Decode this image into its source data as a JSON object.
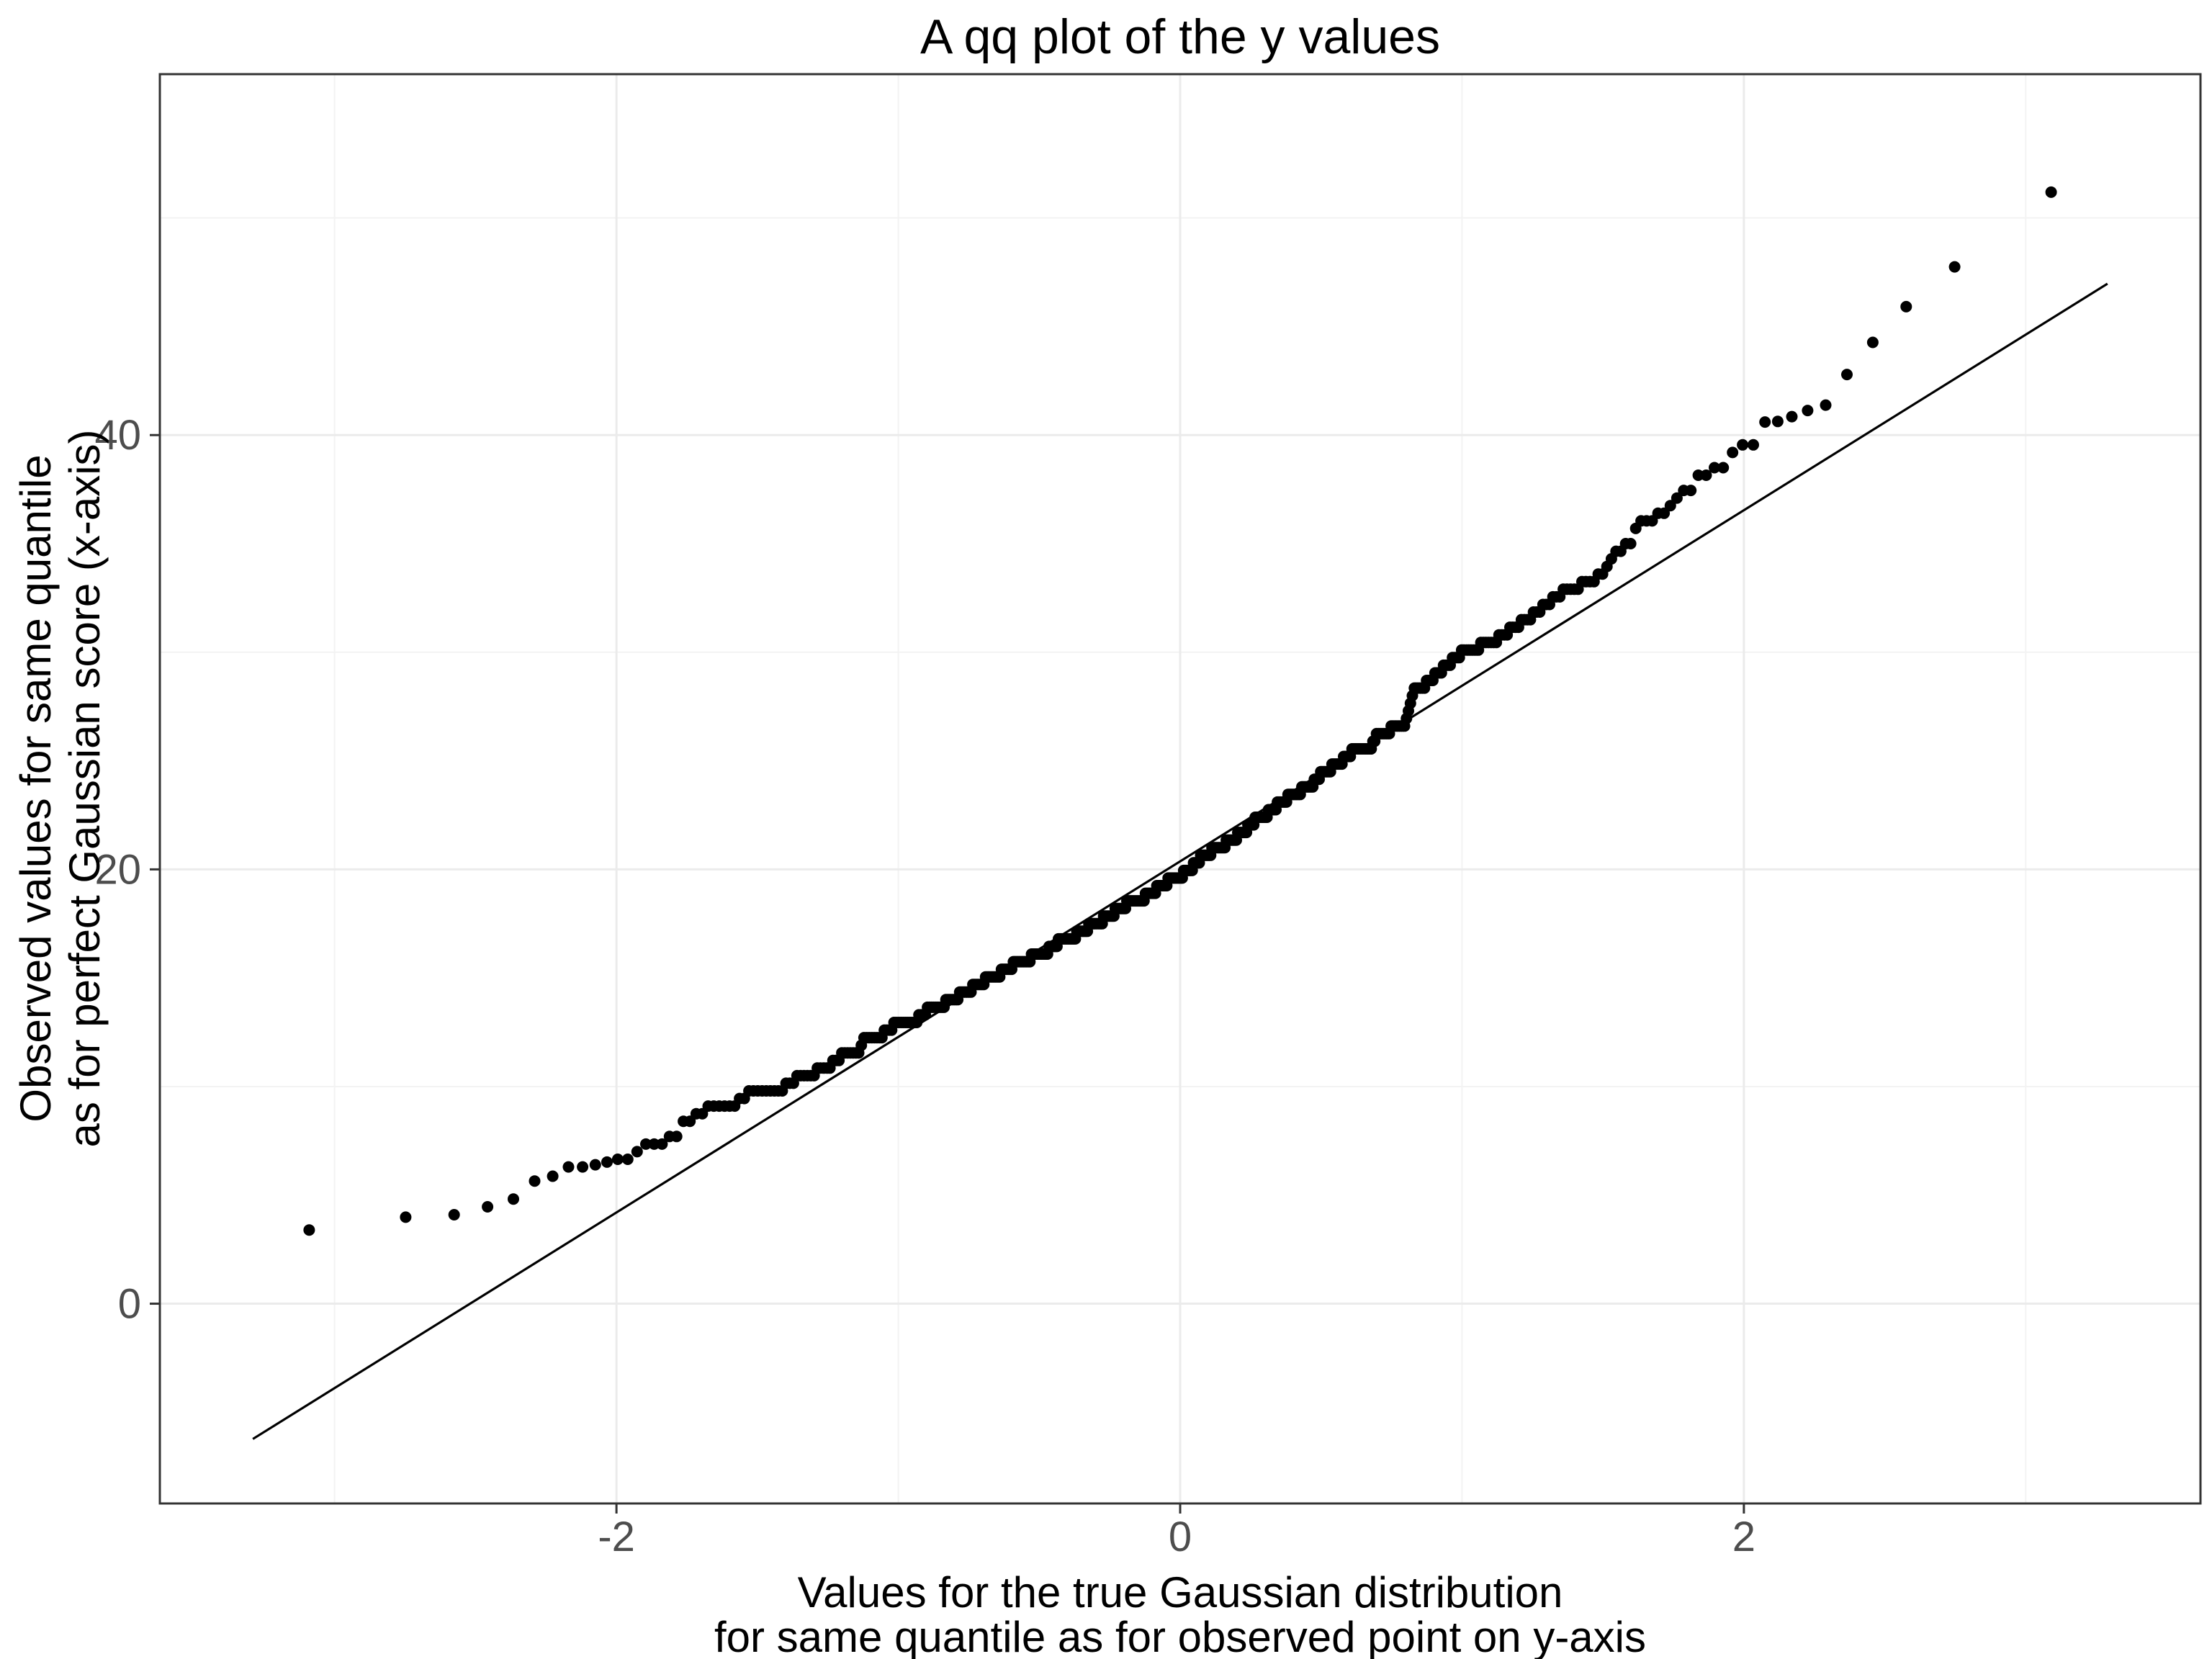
{
  "chart_data": {
    "type": "scatter",
    "subtype": "qq-plot",
    "title": "A qq plot of the y values",
    "xlabel_lines": [
      "Values for the true Gaussian distribution",
      "for same quantile as for observed point on y-axis"
    ],
    "ylabel_lines": [
      "Observed values for same quantile",
      "as for perfect Gaussian score (x-axis)"
    ],
    "x_ticks": [
      {
        "value": -2,
        "label": "-2"
      },
      {
        "value": 0,
        "label": "0"
      },
      {
        "value": 2,
        "label": "2"
      }
    ],
    "y_ticks": [
      {
        "value": 0,
        "label": "0"
      },
      {
        "value": 20,
        "label": "20"
      },
      {
        "value": 40,
        "label": "40"
      }
    ],
    "x_minor_gridlines": [
      -3,
      -1,
      1,
      3
    ],
    "y_minor_gridlines": [
      10,
      30,
      50
    ],
    "xlim": [
      -3.62,
      3.62
    ],
    "ylim": [
      -9.2,
      56.62
    ],
    "grid": true,
    "legend": "none",
    "n_points": 500,
    "point_color": "#000000",
    "line_color": "#000000",
    "grid_major_color": "#ebebeb",
    "grid_minor_color": "#f3f3f3",
    "panel_border_color": "#333333",
    "tick_label_color": "#4d4d4d",
    "background_color": "#ffffff",
    "qq_line": {
      "x_start": -3.29,
      "y_start": -6.23,
      "x_end": 3.29,
      "y_end": 46.97,
      "slope": 8.085,
      "intercept": 20.37
    },
    "jitter_sd": 0.18,
    "quantize_step": 0.35,
    "smooth_tail_cutoff": 2.1,
    "curve_anchors": [
      [
        -3.29,
        2.75
      ],
      [
        -2.97,
        3.78
      ],
      [
        -2.81,
        3.95
      ],
      [
        -2.7,
        4.01
      ],
      [
        -2.62,
        4.08
      ],
      [
        -2.54,
        4.11
      ],
      [
        -2.49,
        4.44
      ],
      [
        -2.43,
        4.48
      ],
      [
        -2.39,
        4.58
      ],
      [
        -2.34,
        5.07
      ],
      [
        -2.31,
        5.61
      ],
      [
        -2.28,
        5.67
      ],
      [
        -2.25,
        5.77
      ],
      [
        -2.21,
        5.94
      ],
      [
        -2.19,
        6.33
      ],
      [
        -2.16,
        6.43
      ],
      [
        -2.13,
        6.5
      ],
      [
        -2.0,
        6.75
      ],
      [
        -1.9,
        7.3
      ],
      [
        -1.76,
        8.2
      ],
      [
        -1.6,
        9.3
      ],
      [
        -1.5,
        9.7
      ],
      [
        -1.4,
        10.0
      ],
      [
        -1.28,
        10.8
      ],
      [
        -1.22,
        11.3
      ],
      [
        -1.1,
        12.1
      ],
      [
        -1.0,
        12.8
      ],
      [
        -0.82,
        13.9
      ],
      [
        -0.65,
        15.2
      ],
      [
        -0.45,
        16.4
      ],
      [
        -0.2,
        18.2
      ],
      [
        0.0,
        19.8
      ],
      [
        0.2,
        21.5
      ],
      [
        0.38,
        23.3
      ],
      [
        0.55,
        24.8
      ],
      [
        0.73,
        26.3
      ],
      [
        0.79,
        26.45
      ],
      [
        0.81,
        27.8
      ],
      [
        1.0,
        29.9
      ],
      [
        1.21,
        31.4
      ],
      [
        1.32,
        32.3
      ],
      [
        1.46,
        33.5
      ],
      [
        1.57,
        34.7
      ],
      [
        1.6,
        35.3
      ],
      [
        1.7,
        36.4
      ],
      [
        1.83,
        37.9
      ],
      [
        1.94,
        39.0
      ],
      [
        2.0,
        39.6
      ],
      [
        2.06,
        40.0
      ],
      [
        2.09,
        40.5
      ],
      [
        2.16,
        40.8
      ],
      [
        2.24,
        41.2
      ],
      [
        2.31,
        41.45
      ],
      [
        2.35,
        42.4
      ],
      [
        2.39,
        43.4
      ],
      [
        2.43,
        44.2
      ],
      [
        2.49,
        44.35
      ],
      [
        2.54,
        45.6
      ],
      [
        2.62,
        46.3
      ],
      [
        2.7,
        47.4
      ],
      [
        2.81,
        48.2
      ],
      [
        2.97,
        49.7
      ],
      [
        3.29,
        53.65
      ]
    ]
  }
}
